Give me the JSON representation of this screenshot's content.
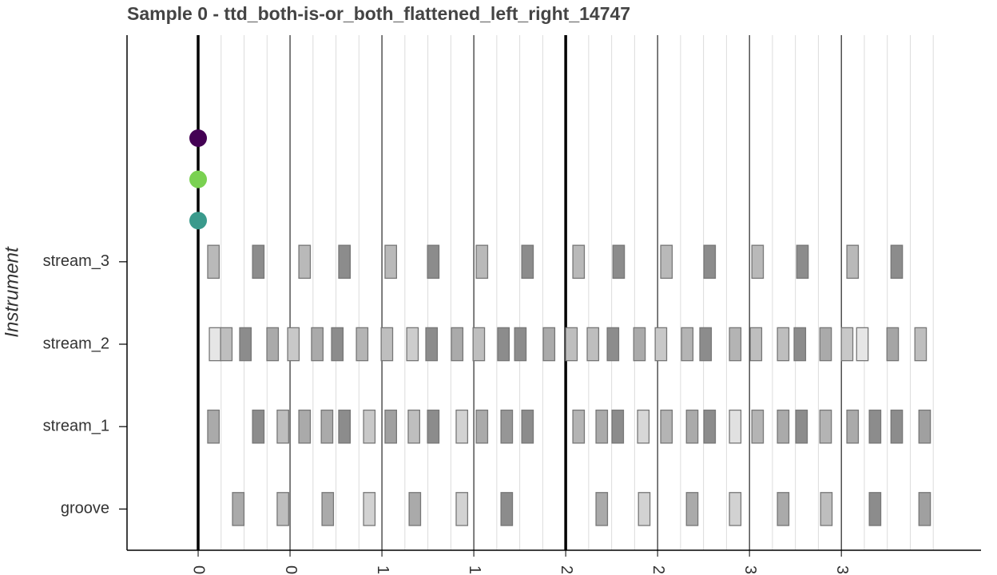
{
  "chart_data": {
    "type": "pianoroll",
    "title": "Sample 0 - ttd_both-is-or_both_flattened_left_right_14747",
    "ylabel": "Instrument",
    "categories": [
      "groove",
      "stream_1",
      "stream_2",
      "stream_3"
    ],
    "xlim": [
      -0.387,
      4.26
    ],
    "ylim": [
      -0.5,
      5.75
    ],
    "xticks": [
      0,
      0.5,
      1,
      1.5,
      2,
      2.5,
      3,
      3.5
    ],
    "bar_lines": [
      0,
      2
    ],
    "minor_xgrid": {
      "step": 0.125,
      "range": [
        0,
        4
      ]
    },
    "note_duration": 0.0625,
    "note_height": 0.4,
    "notes": [
      {
        "x": [
          0.187,
          0.43,
          0.674,
          0.9,
          1.148,
          1.404,
          1.648,
          2.165,
          2.396,
          2.657,
          2.891,
          3.152,
          3.387,
          3.652,
          3.922
        ],
        "velocity": [
          80,
          60,
          80,
          40,
          80,
          40,
          110,
          80,
          40,
          80,
          40,
          80,
          60,
          110,
          90
        ]
      },
      {
        "x": [
          0.052,
          0.296,
          0.43,
          0.548,
          0.67,
          0.765,
          0.9,
          1.017,
          1.143,
          1.248,
          1.404,
          1.513,
          1.648,
          1.761,
          2.039,
          2.165,
          2.252,
          2.391,
          2.517,
          2.657,
          2.752,
          2.891,
          3.013,
          3.152,
          3.252,
          3.383,
          3.53,
          3.652,
          3.77,
          3.922
        ],
        "velocity": [
          80,
          110,
          60,
          80,
          80,
          110,
          50,
          90,
          60,
          110,
          40,
          80,
          100,
          110,
          70,
          80,
          110,
          35,
          70,
          80,
          110,
          25,
          70,
          80,
          110,
          70,
          80,
          110,
          110,
          90
        ]
      },
      {
        "x": [
          0.061,
          0.122,
          0.226,
          0.374,
          0.487,
          0.617,
          0.726,
          0.861,
          0.996,
          1.135,
          1.239,
          1.378,
          1.496,
          1.63,
          1.722,
          1.878,
          2.0,
          2.117,
          2.226,
          2.37,
          2.487,
          2.63,
          2.73,
          2.891,
          3.004,
          3.152,
          3.243,
          3.383,
          3.5,
          3.583,
          3.748,
          3.9
        ],
        "velocity": [
          20,
          60,
          110,
          80,
          50,
          80,
          110,
          70,
          60,
          45,
          110,
          80,
          60,
          110,
          110,
          80,
          60,
          60,
          110,
          80,
          50,
          70,
          110,
          70,
          60,
          60,
          110,
          80,
          50,
          20,
          85,
          60
        ]
      },
      {
        "x": [
          0.052,
          0.296,
          0.548,
          0.765,
          1.017,
          1.248,
          1.513,
          1.761,
          2.039,
          2.257,
          2.517,
          2.752,
          3.013,
          3.257,
          3.53,
          3.77
        ],
        "velocity": [
          65,
          110,
          65,
          110,
          65,
          110,
          65,
          110,
          65,
          110,
          65,
          110,
          65,
          110,
          65,
          110
        ]
      }
    ],
    "markers": {
      "x": [
        0,
        0,
        0
      ],
      "y": [
        4.5,
        4,
        3.5
      ],
      "colors": [
        "#440154",
        "#7ad151",
        "#3a9a8c"
      ]
    }
  }
}
